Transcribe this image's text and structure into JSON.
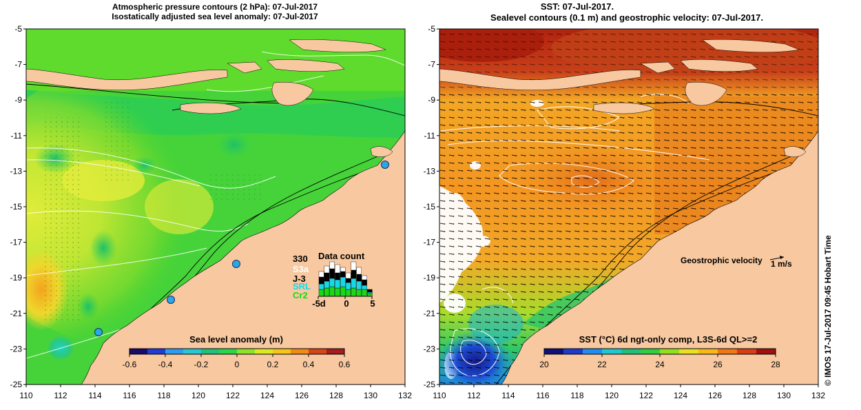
{
  "left_panel": {
    "title_line1": "Atmospheric pressure contours (2 hPa): 07-Jul-2017",
    "title_line2": "Isostatically adjusted sea level anomaly: 07-Jul-2017",
    "lat_ticks": [
      "-5",
      "-7",
      "-9",
      "-11",
      "-13",
      "-15",
      "-17",
      "-19",
      "-21",
      "-23",
      "-25"
    ],
    "lon_ticks": [
      "110",
      "112",
      "114",
      "116",
      "118",
      "120",
      "122",
      "124",
      "126",
      "128",
      "130",
      "132"
    ],
    "colorbar": {
      "label": "Sea level anomaly (m)",
      "ticks": [
        "-0.6",
        "-0.4",
        "-0.2",
        "0",
        "0.2",
        "0.4",
        "0.6"
      ],
      "colors": [
        "#1a0a6e",
        "#1e3cd8",
        "#2b9ef2",
        "#25c8d4",
        "#1fc27a",
        "#2ad64a",
        "#8ee22a",
        "#d9ea22",
        "#f4c61c",
        "#f08a18",
        "#d8441a",
        "#a51d1d"
      ]
    },
    "data_count": {
      "number": "330",
      "title": "Data count",
      "legend": [
        {
          "label": "S3a",
          "color": "#ffffff"
        },
        {
          "label": "J-3",
          "color": "#000000"
        },
        {
          "label": "SRL",
          "color": "#18d8e8"
        },
        {
          "label": "Cr2",
          "color": "#18d818"
        }
      ],
      "axis_ticks": [
        "-5d",
        "0",
        "5"
      ],
      "bars": [
        {
          "day": -5,
          "cr2": 10,
          "srl": 8,
          "j3": 10,
          "s3a": 8
        },
        {
          "day": -4,
          "cr2": 12,
          "srl": 10,
          "j3": 12,
          "s3a": 10
        },
        {
          "day": -3,
          "cr2": 14,
          "srl": 12,
          "j3": 14,
          "s3a": 10
        },
        {
          "day": -2,
          "cr2": 12,
          "srl": 12,
          "j3": 10,
          "s3a": 12
        },
        {
          "day": -1,
          "cr2": 14,
          "srl": 14,
          "j3": 8,
          "s3a": 6
        },
        {
          "day": 0,
          "cr2": 10,
          "srl": 10,
          "j3": 6,
          "s3a": 8
        },
        {
          "day": 1,
          "cr2": 12,
          "srl": 14,
          "j3": 12,
          "s3a": 12
        },
        {
          "day": 2,
          "cr2": 10,
          "srl": 12,
          "j3": 10,
          "s3a": 10
        },
        {
          "day": 3,
          "cr2": 10,
          "srl": 6,
          "j3": 8,
          "s3a": 6
        },
        {
          "day": 4,
          "cr2": 4,
          "srl": 2,
          "j3": 4,
          "s3a": 0
        }
      ]
    }
  },
  "right_panel": {
    "title_line1": "SST: 07-Jul-2017.",
    "title_line2": "Sealevel contours (0.1 m) and geostrophic velocity: 07-Jul-2017.",
    "lat_ticks": [
      "-5",
      "-7",
      "-9",
      "-11",
      "-13",
      "-15",
      "-17",
      "-19",
      "-21",
      "-23",
      "-25"
    ],
    "lon_ticks": [
      "110",
      "112",
      "114",
      "116",
      "118",
      "120",
      "122",
      "124",
      "126",
      "128",
      "130",
      "132"
    ],
    "velocity_label": "Geostrophic velocity",
    "velocity_scale_label": "1 m/s",
    "colorbar": {
      "label": "SST (°C) 6d ngt-only comp, L3S-6d QL>=2",
      "ticks": [
        "20",
        "22",
        "24",
        "26",
        "28"
      ],
      "colors": [
        "#10107a",
        "#1c3cd0",
        "#1e8ef0",
        "#1ec8d0",
        "#20c07a",
        "#2cd040",
        "#90e020",
        "#e8e020",
        "#f8b818",
        "#f07814",
        "#d83c14",
        "#a01010"
      ]
    }
  },
  "credit": "© IMOS 17-Jul-2017 09:45 Hobart Time",
  "colors": {
    "land": "#f8c8a0",
    "sea_green": "#44d23a",
    "sst_orange": "#f09020",
    "sst_red": "#b82010"
  }
}
